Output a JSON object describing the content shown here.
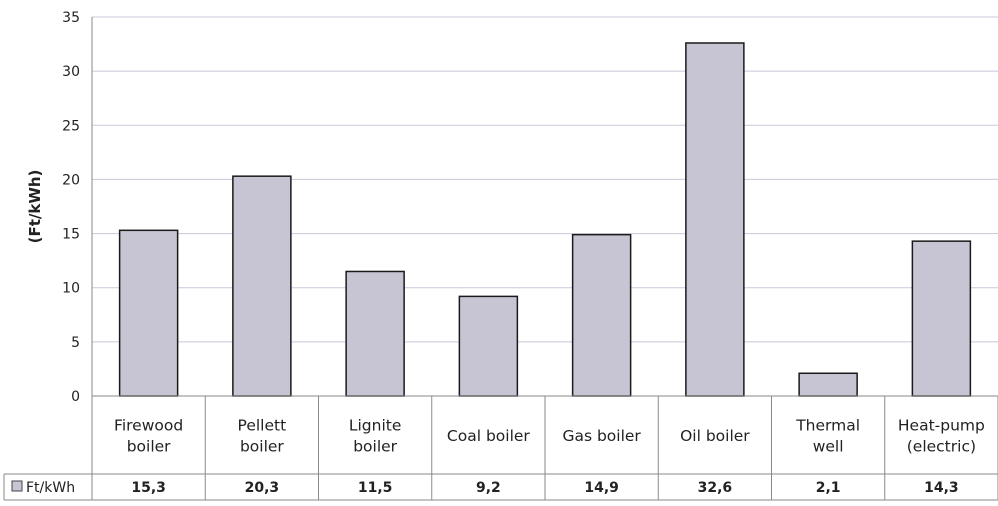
{
  "chart_data": {
    "type": "bar",
    "ylabel": "(Ft/kWh)",
    "ylim": [
      0,
      35
    ],
    "yticks": [
      0,
      5,
      10,
      15,
      20,
      25,
      30,
      35
    ],
    "grid": true,
    "categories": [
      [
        "Firewood",
        "boiler"
      ],
      [
        "Pellett",
        "boiler"
      ],
      [
        "Lignite",
        "boiler"
      ],
      [
        "Coal boiler"
      ],
      [
        "Gas boiler"
      ],
      [
        "Oil boiler"
      ],
      [
        "Thermal",
        "well"
      ],
      [
        "Heat-pump",
        "(electric)"
      ]
    ],
    "series": [
      {
        "name": "Ft/kWh",
        "values": [
          15.3,
          20.3,
          11.5,
          9.2,
          14.9,
          32.6,
          2.1,
          14.3
        ],
        "value_labels": [
          "15,3",
          "20,3",
          "11,5",
          "9,2",
          "14,9",
          "32,6",
          "2,1",
          "14,3"
        ],
        "color": "#c7c5d3"
      }
    ],
    "legend": "table-row-left",
    "gridline_color": "#c8c8dc",
    "axis_color": "#8a8a8a",
    "bar_stroke": "#1a1a1a"
  }
}
